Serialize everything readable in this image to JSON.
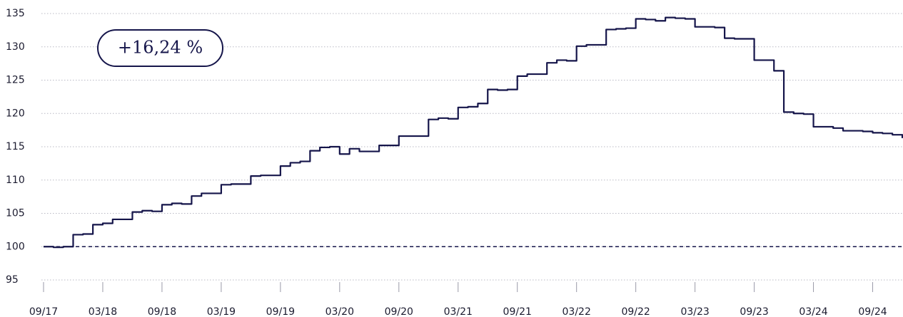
{
  "chart_data": {
    "type": "line",
    "step": true,
    "color": "#15154a",
    "annotation": "+16,24 %",
    "reference": 100,
    "x": [
      "2017-09",
      "2017-10",
      "2017-11",
      "2017-12",
      "2018-01",
      "2018-02",
      "2018-03",
      "2018-04",
      "2018-05",
      "2018-06",
      "2018-07",
      "2018-08",
      "2018-09",
      "2018-10",
      "2018-11",
      "2018-12",
      "2019-01",
      "2019-02",
      "2019-03",
      "2019-04",
      "2019-05",
      "2019-06",
      "2019-07",
      "2019-08",
      "2019-09",
      "2019-10",
      "2019-11",
      "2019-12",
      "2020-01",
      "2020-02",
      "2020-03",
      "2020-04",
      "2020-05",
      "2020-06",
      "2020-07",
      "2020-08",
      "2020-09",
      "2020-10",
      "2020-11",
      "2020-12",
      "2021-01",
      "2021-02",
      "2021-03",
      "2021-04",
      "2021-05",
      "2021-06",
      "2021-07",
      "2021-08",
      "2021-09",
      "2021-10",
      "2021-11",
      "2021-12",
      "2022-01",
      "2022-02",
      "2022-03",
      "2022-04",
      "2022-05",
      "2022-06",
      "2022-07",
      "2022-08",
      "2022-09",
      "2022-10",
      "2022-11",
      "2022-12",
      "2023-01",
      "2023-02",
      "2023-03",
      "2023-04",
      "2023-05",
      "2023-06",
      "2023-07",
      "2023-08",
      "2023-09",
      "2023-10",
      "2023-11",
      "2023-12",
      "2024-01",
      "2024-02",
      "2024-03",
      "2024-04",
      "2024-05",
      "2024-06",
      "2024-07",
      "2024-08",
      "2024-09",
      "2024-10",
      "2024-11",
      "2024-12"
    ],
    "values": [
      100.0,
      99.9,
      100.0,
      101.8,
      101.9,
      103.3,
      103.5,
      104.1,
      104.1,
      105.2,
      105.4,
      105.3,
      106.3,
      106.5,
      106.4,
      107.6,
      108.0,
      108.0,
      109.3,
      109.4,
      109.4,
      110.6,
      110.7,
      110.7,
      112.1,
      112.6,
      112.8,
      114.4,
      114.9,
      115.0,
      113.9,
      114.7,
      114.3,
      114.3,
      115.2,
      115.2,
      116.6,
      116.6,
      116.6,
      119.1,
      119.3,
      119.2,
      120.9,
      121.0,
      121.5,
      123.6,
      123.5,
      123.6,
      125.6,
      125.9,
      125.9,
      127.6,
      128.0,
      127.9,
      130.1,
      130.3,
      130.3,
      132.6,
      132.7,
      132.8,
      134.2,
      134.1,
      133.9,
      134.4,
      134.3,
      134.2,
      133.0,
      133.0,
      132.9,
      131.3,
      131.2,
      131.2,
      128.0,
      128.0,
      126.4,
      120.2,
      120.0,
      119.9,
      118.0,
      118.0,
      117.8,
      117.4,
      117.4,
      117.3,
      117.1,
      117.0,
      116.8,
      116.3
    ],
    "xlim": [
      "2017-09",
      "2024-12"
    ],
    "xticks": [
      {
        "value": "2017-09",
        "label": "09/17"
      },
      {
        "value": "2018-03",
        "label": "03/18"
      },
      {
        "value": "2018-09",
        "label": "09/18"
      },
      {
        "value": "2019-03",
        "label": "03/19"
      },
      {
        "value": "2019-09",
        "label": "09/19"
      },
      {
        "value": "2020-03",
        "label": "03/20"
      },
      {
        "value": "2020-09",
        "label": "09/20"
      },
      {
        "value": "2021-03",
        "label": "03/21"
      },
      {
        "value": "2021-09",
        "label": "09/21"
      },
      {
        "value": "2022-03",
        "label": "03/22"
      },
      {
        "value": "2022-09",
        "label": "09/22"
      },
      {
        "value": "2023-03",
        "label": "03/23"
      },
      {
        "value": "2023-09",
        "label": "09/23"
      },
      {
        "value": "2024-03",
        "label": "03/24"
      },
      {
        "value": "2024-09",
        "label": "09/24"
      }
    ],
    "ylim": [
      94,
      136
    ],
    "yticks": [
      95,
      100,
      105,
      110,
      115,
      120,
      125,
      130,
      135
    ],
    "grid": true
  }
}
